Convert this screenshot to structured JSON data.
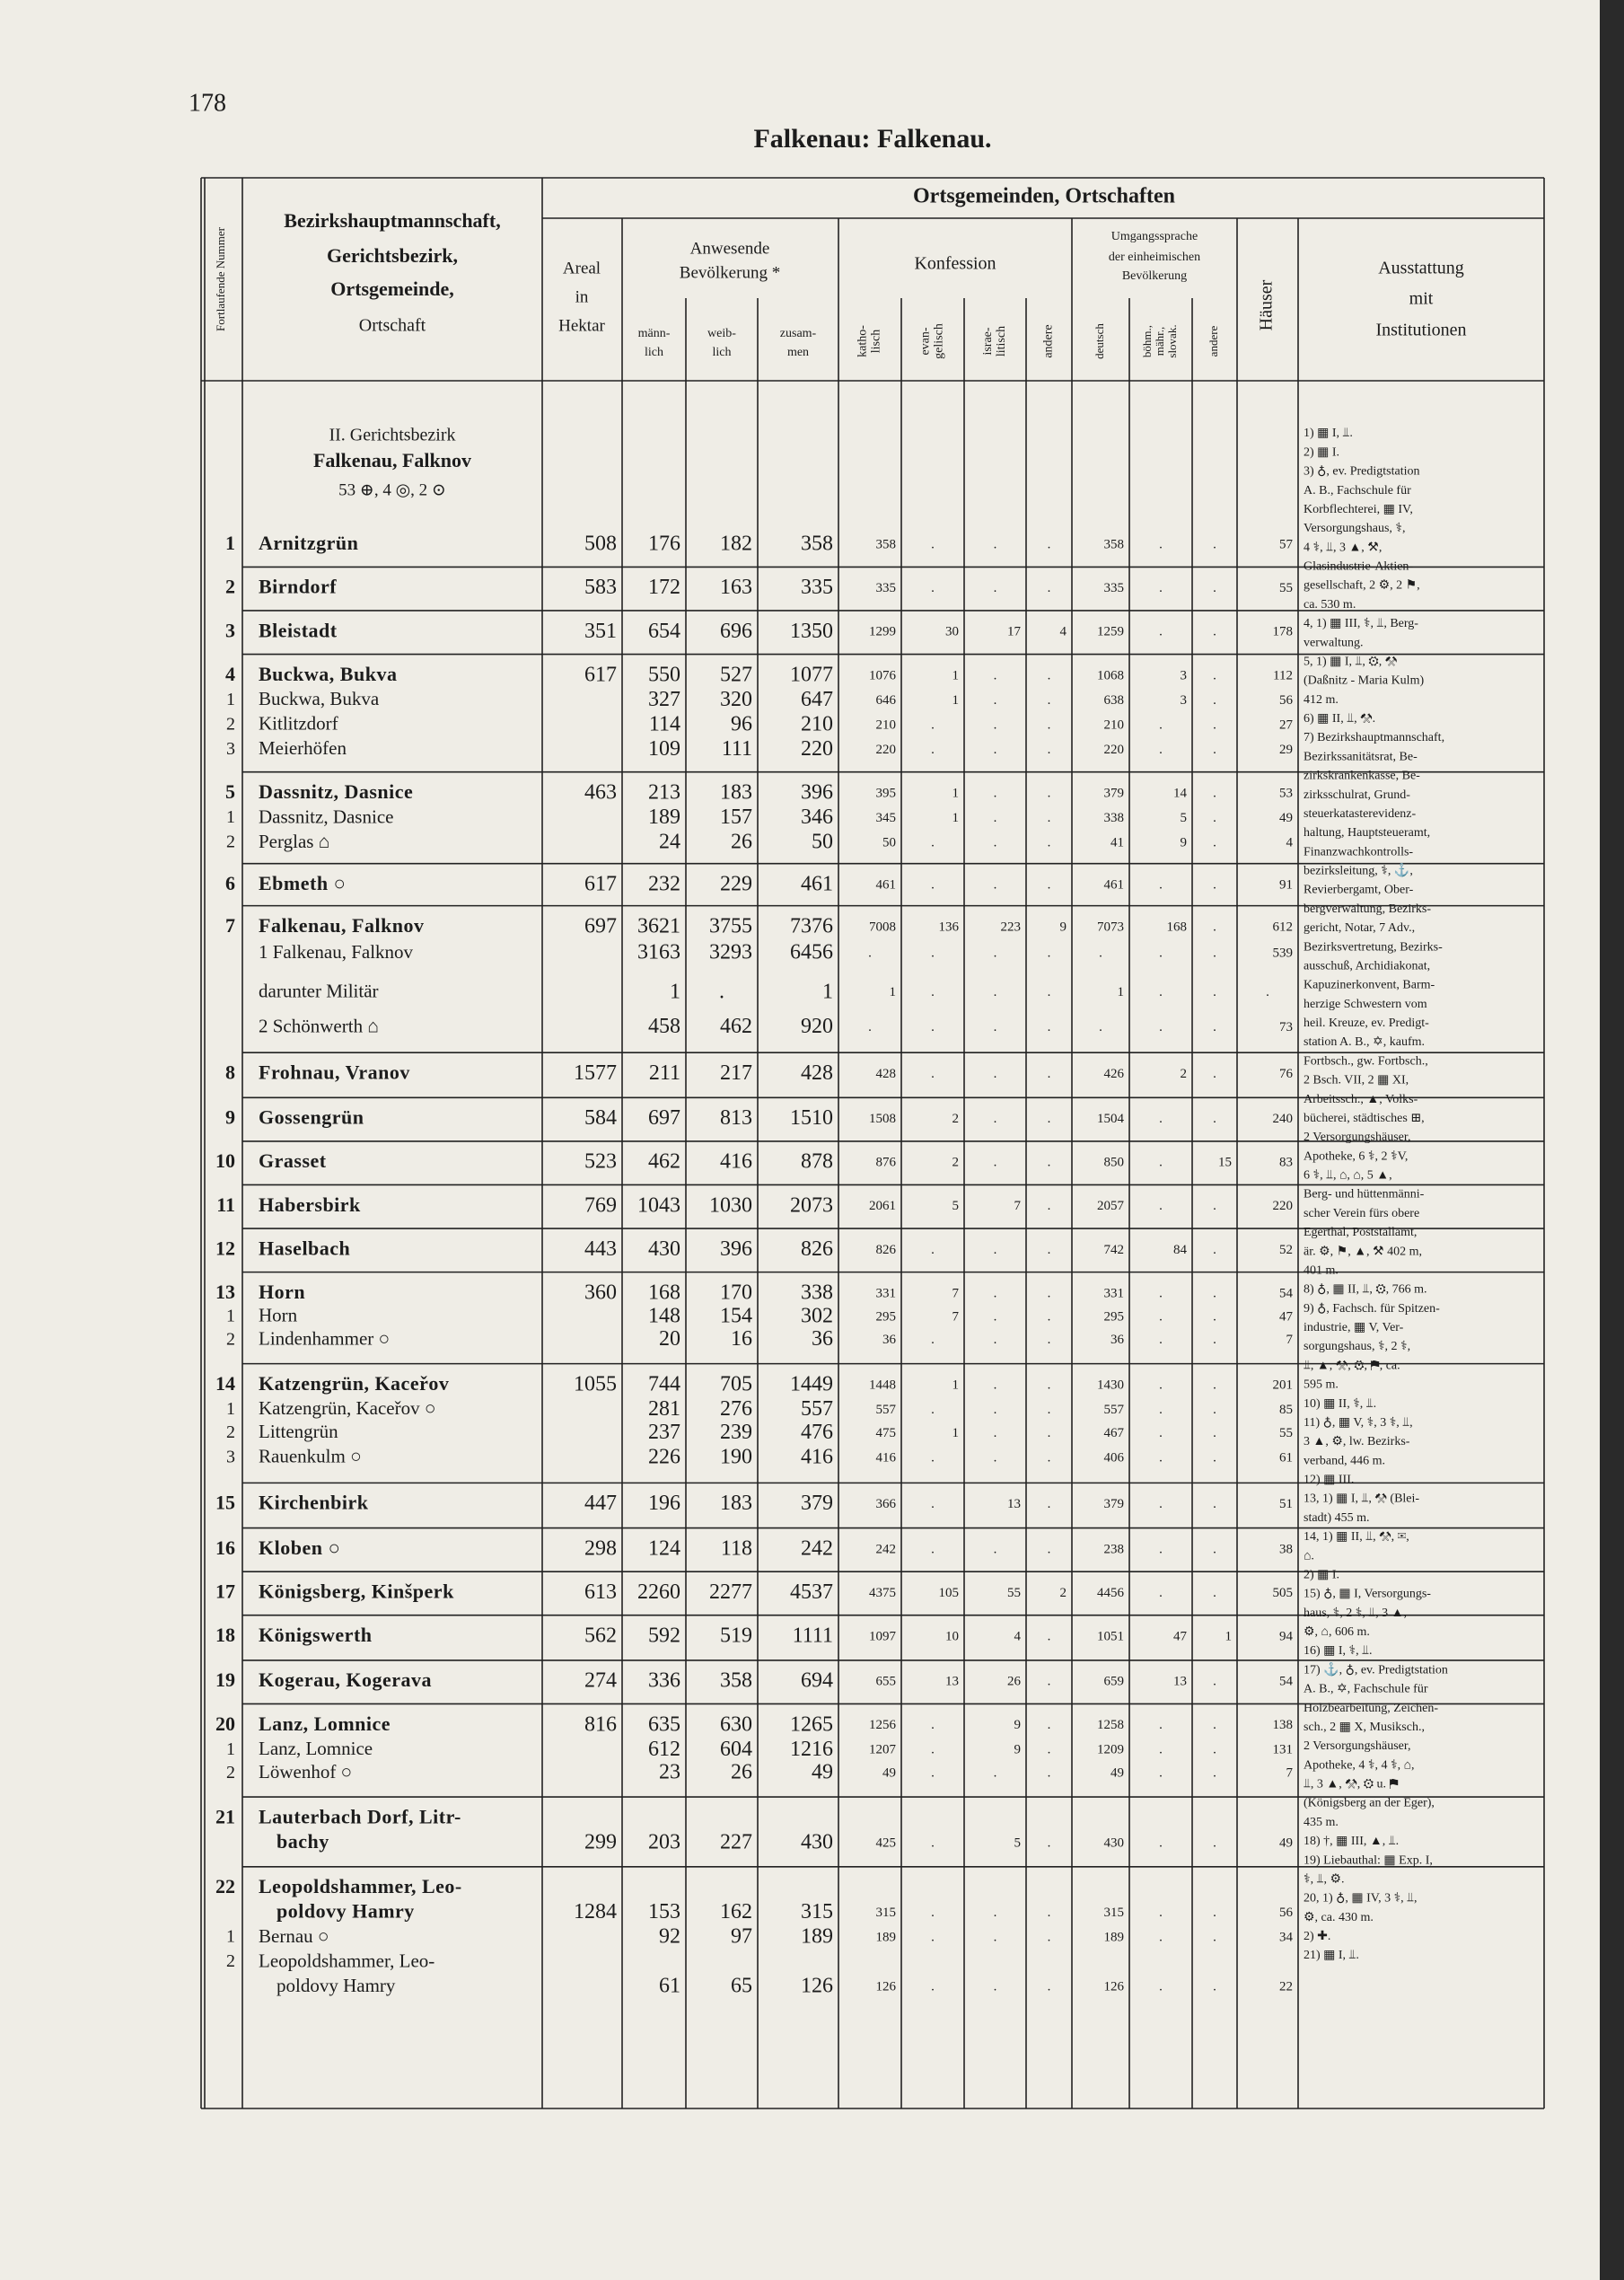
{
  "page_number": "178",
  "title": "Falkenau: Falkenau.",
  "header": {
    "number": "Fortlaufende Nummer",
    "place": [
      "Bezirkshauptmannschaft,",
      "Gerichtsbezirk,",
      "Ortsgemeinde,",
      "Ortschaft"
    ],
    "band": "Ortsgemeinden, Ortschaften",
    "area": [
      "Areal",
      "in",
      "Hektar"
    ],
    "population": [
      "Anwesende",
      "Bevölkerung *"
    ],
    "pop_cols": [
      [
        "männ-",
        "lich"
      ],
      [
        "weib-",
        "lich"
      ],
      [
        "zusam-",
        "men"
      ]
    ],
    "confession": "Konfession",
    "conf_cols": [
      [
        "katho-",
        "lisch"
      ],
      [
        "evan-",
        "gelisch"
      ],
      [
        "israe-",
        "litisch"
      ],
      [
        "andere"
      ]
    ],
    "language": [
      "Umgangssprache",
      "der einheimischen",
      "Bevölkerung"
    ],
    "lang_cols": [
      [
        "deutsch"
      ],
      [
        "böhm.,",
        "mähr.,",
        "slovak."
      ],
      [
        "andere"
      ]
    ],
    "houses": "Häuser",
    "equipment": [
      "Ausstattung",
      "mit",
      "Institutionen"
    ]
  },
  "section": [
    "II. Gerichtsbezirk",
    "Falkenau, Falknov",
    "53 ⊕, 4 ◎, 2 ⊙"
  ],
  "groups": [
    {
      "nr": "1",
      "name": [
        "Arnitzgrün"
      ],
      "cells": [
        508,
        176,
        182,
        358,
        358,
        ".",
        ".",
        ".",
        358,
        ".",
        ".",
        57
      ]
    },
    {
      "nr": "2",
      "name": [
        "Birndorf"
      ],
      "cells": [
        583,
        172,
        163,
        335,
        335,
        ".",
        ".",
        ".",
        335,
        ".",
        ".",
        55
      ]
    },
    {
      "nr": "3",
      "name": [
        "Bleistadt"
      ],
      "cells": [
        351,
        654,
        696,
        1350,
        1299,
        30,
        17,
        4,
        1259,
        ".",
        ".",
        178
      ]
    },
    {
      "nr": "4",
      "name": [
        "Buckwa, Bukva"
      ],
      "cells": [
        617,
        550,
        527,
        1077,
        1076,
        1,
        ".",
        ".",
        1068,
        3,
        ".",
        112
      ],
      "subs": [
        {
          "nr": "1",
          "name": [
            "Buckwa, Bukva"
          ],
          "cells": [
            null,
            327,
            320,
            647,
            646,
            1,
            ".",
            ".",
            638,
            3,
            ".",
            56
          ]
        },
        {
          "nr": "2",
          "name": [
            "Kitlitzdorf"
          ],
          "cells": [
            null,
            114,
            96,
            210,
            210,
            ".",
            ".",
            ".",
            210,
            ".",
            ".",
            27
          ]
        },
        {
          "nr": "3",
          "name": [
            "Meierhöfen"
          ],
          "cells": [
            null,
            109,
            111,
            220,
            220,
            ".",
            ".",
            ".",
            220,
            ".",
            ".",
            29
          ]
        }
      ]
    },
    {
      "nr": "5",
      "name": [
        "Dassnitz, Dasnice"
      ],
      "cells": [
        463,
        213,
        183,
        396,
        395,
        1,
        ".",
        ".",
        379,
        14,
        ".",
        53
      ],
      "subs": [
        {
          "nr": "1",
          "name": [
            "Dassnitz, Dasnice"
          ],
          "cells": [
            null,
            189,
            157,
            346,
            345,
            1,
            ".",
            ".",
            338,
            5,
            ".",
            49
          ]
        },
        {
          "nr": "2",
          "name": [
            "Perglas ⌂"
          ],
          "cells": [
            null,
            24,
            26,
            50,
            50,
            ".",
            ".",
            ".",
            41,
            9,
            ".",
            4
          ]
        }
      ]
    },
    {
      "nr": "6",
      "name": [
        "Ebmeth ○"
      ],
      "cells": [
        617,
        232,
        229,
        461,
        461,
        ".",
        ".",
        ".",
        461,
        ".",
        ".",
        91
      ]
    },
    {
      "nr": "7",
      "name": [
        "Falkenau, Falknov"
      ],
      "cells": [
        697,
        3621,
        3755,
        7376,
        7008,
        136,
        223,
        9,
        7073,
        168,
        ".",
        612
      ],
      "subs": [
        {
          "nr": null,
          "name": [
            "1 Falkenau, Falknov"
          ],
          "cells": [
            null,
            3163,
            3293,
            6456,
            ".",
            ".",
            ".",
            ".",
            ".",
            ".",
            ".",
            539
          ]
        },
        {
          "nr": null,
          "name": [
            "darunter Militär"
          ],
          "cells": [
            null,
            1,
            ".",
            1,
            1,
            ".",
            ".",
            ".",
            1,
            ".",
            ".",
            "."
          ]
        },
        {
          "nr": null,
          "name": [
            "2 Schönwerth ⌂"
          ],
          "cells": [
            null,
            458,
            462,
            920,
            ".",
            ".",
            ".",
            ".",
            ".",
            ".",
            ".",
            73
          ]
        }
      ]
    },
    {
      "nr": "8",
      "name": [
        "Frohnau, Vranov"
      ],
      "cells": [
        1577,
        211,
        217,
        428,
        428,
        ".",
        ".",
        ".",
        426,
        2,
        ".",
        76
      ]
    },
    {
      "nr": "9",
      "name": [
        "Gossengrün"
      ],
      "cells": [
        584,
        697,
        813,
        1510,
        1508,
        2,
        ".",
        ".",
        1504,
        ".",
        ".",
        240
      ]
    },
    {
      "nr": "10",
      "name": [
        "Grasset"
      ],
      "cells": [
        523,
        462,
        416,
        878,
        876,
        2,
        ".",
        ".",
        850,
        ".",
        15,
        83
      ]
    },
    {
      "nr": "11",
      "name": [
        "Habersbirk"
      ],
      "cells": [
        769,
        1043,
        1030,
        2073,
        2061,
        5,
        7,
        ".",
        2057,
        ".",
        ".",
        220
      ]
    },
    {
      "nr": "12",
      "name": [
        "Haselbach"
      ],
      "cells": [
        443,
        430,
        396,
        826,
        826,
        ".",
        ".",
        ".",
        742,
        84,
        ".",
        52
      ]
    },
    {
      "nr": "13",
      "name": [
        "Horn"
      ],
      "cells": [
        360,
        168,
        170,
        338,
        331,
        7,
        ".",
        ".",
        331,
        ".",
        ".",
        54
      ],
      "subs": [
        {
          "nr": "1",
          "name": [
            "Horn"
          ],
          "cells": [
            null,
            148,
            154,
            302,
            295,
            7,
            ".",
            ".",
            295,
            ".",
            ".",
            47
          ]
        },
        {
          "nr": "2",
          "name": [
            "Lindenhammer ○"
          ],
          "cells": [
            null,
            20,
            16,
            36,
            36,
            ".",
            ".",
            ".",
            36,
            ".",
            ".",
            7
          ]
        }
      ]
    },
    {
      "nr": "14",
      "name": [
        "Katzengrün, Kaceřov"
      ],
      "cells": [
        1055,
        744,
        705,
        1449,
        1448,
        1,
        ".",
        ".",
        1430,
        ".",
        ".",
        201
      ],
      "subs": [
        {
          "nr": "1",
          "name": [
            "Katzengrün, Kaceřov ○"
          ],
          "cells": [
            null,
            281,
            276,
            557,
            557,
            ".",
            ".",
            ".",
            557,
            ".",
            ".",
            85
          ]
        },
        {
          "nr": "2",
          "name": [
            "Littengrün"
          ],
          "cells": [
            null,
            237,
            239,
            476,
            475,
            1,
            ".",
            ".",
            467,
            ".",
            ".",
            55
          ]
        },
        {
          "nr": "3",
          "name": [
            "Rauenkulm ○"
          ],
          "cells": [
            null,
            226,
            190,
            416,
            416,
            ".",
            ".",
            ".",
            406,
            ".",
            ".",
            61
          ]
        }
      ]
    },
    {
      "nr": "15",
      "name": [
        "Kirchenbirk"
      ],
      "cells": [
        447,
        196,
        183,
        379,
        366,
        ".",
        13,
        ".",
        379,
        ".",
        ".",
        51
      ]
    },
    {
      "nr": "16",
      "name": [
        "Kloben ○"
      ],
      "cells": [
        298,
        124,
        118,
        242,
        242,
        ".",
        ".",
        ".",
        238,
        ".",
        ".",
        38
      ]
    },
    {
      "nr": "17",
      "name": [
        "Königsberg, Kinšperk"
      ],
      "cells": [
        613,
        2260,
        2277,
        4537,
        4375,
        105,
        55,
        2,
        4456,
        ".",
        ".",
        505
      ]
    },
    {
      "nr": "18",
      "name": [
        "Königswerth"
      ],
      "cells": [
        562,
        592,
        519,
        1111,
        1097,
        10,
        4,
        ".",
        1051,
        47,
        1,
        94
      ]
    },
    {
      "nr": "19",
      "name": [
        "Kogerau, Kogerava"
      ],
      "cells": [
        274,
        336,
        358,
        694,
        655,
        13,
        26,
        ".",
        659,
        13,
        ".",
        54
      ]
    },
    {
      "nr": "20",
      "name": [
        "Lanz, Lomnice"
      ],
      "cells": [
        816,
        635,
        630,
        1265,
        1256,
        ".",
        9,
        ".",
        1258,
        ".",
        ".",
        138
      ],
      "subs": [
        {
          "nr": "1",
          "name": [
            "Lanz, Lomnice"
          ],
          "cells": [
            null,
            612,
            604,
            1216,
            1207,
            ".",
            9,
            ".",
            1209,
            ".",
            ".",
            131
          ]
        },
        {
          "nr": "2",
          "name": [
            "Löwenhof ○"
          ],
          "cells": [
            null,
            23,
            26,
            49,
            49,
            ".",
            ".",
            ".",
            49,
            ".",
            ".",
            7
          ]
        }
      ]
    },
    {
      "nr": "21",
      "name": [
        "Lauterbach Dorf, Litr-",
        "bachy"
      ],
      "cells": [
        299,
        203,
        227,
        430,
        425,
        ".",
        5,
        ".",
        430,
        ".",
        ".",
        49
      ]
    },
    {
      "nr": "22",
      "name": [
        "Leopoldshammer, Leo-",
        "poldovy Hamry"
      ],
      "cells": [
        1284,
        153,
        162,
        315,
        315,
        ".",
        ".",
        ".",
        315,
        ".",
        ".",
        56
      ],
      "subs": [
        {
          "nr": "1",
          "name": [
            "Bernau ○"
          ],
          "cells": [
            null,
            92,
            97,
            189,
            189,
            ".",
            ".",
            ".",
            189,
            ".",
            ".",
            34
          ]
        },
        {
          "nr": "2",
          "name": [
            "Leopoldshammer, Leo-",
            "poldovy Hamry"
          ],
          "cells": [
            null,
            61,
            65,
            126,
            126,
            ".",
            ".",
            ".",
            126,
            ".",
            ".",
            22
          ]
        }
      ]
    }
  ],
  "notes": [
    "1) ▦ I, ⫫.",
    "2) ▦ I.",
    "3) ♁, ev. Predigtstation",
    "A. B., Fachschule für",
    "Korbflechterei, ▦ IV,",
    "Versorgungshaus, ⚕,",
    "4 ⚕, ⫫, 3 ▲, ⚒,",
    "Glasindustrie-Aktien-",
    "gesellschaft, 2 ⚙, 2 ⚑,",
    "ca. 530 m.",
    "4, 1) ▦ III, ⚕, ⫫, Berg-",
    "verwaltung.",
    "5, 1) ▦ I, ⫫, ⚙, ⚒",
    "(Daßnitz - Maria Kulm)",
    "412 m.",
    "6) ▦ II, ⫫, ⚒.",
    "7) Bezirkshauptmannschaft,",
    "Bezirkssanitätsrat, Be-",
    "zirkskrankenkasse, Be-",
    "zirksschulrat, Grund-",
    "steuerkatasterevidenz-",
    "haltung, Hauptsteueramt,",
    "Finanzwachkontrolls-",
    "bezirksleitung, ⚕, ⚓,",
    "Revierbergamt, Ober-",
    "bergverwaltung, Bezirks-",
    "gericht, Notar, 7 Adv.,",
    "Bezirksvertretung, Bezirks-",
    "ausschuß, Archidiakonat,",
    "Kapuzinerkonvent, Barm-",
    "herzige Schwestern vom",
    "heil. Kreuze, ev. Predigt-",
    "station A. B., ✡, kaufm.",
    "Fortbsch., gw. Fortbsch.,",
    "2 Bsch. VII, 2 ▦ XI,",
    "Arbeitssch., ▲, Volks-",
    "bücherei, städtisches ⊞,",
    "2 Versorgungshäuser,",
    "Apotheke, 6 ⚕, 2 ⚕V,",
    "6 ⚕, ⫫, ⌂, ⌂, 5 ▲,",
    "Berg- und hüttenmänni-",
    "scher Verein fürs obere",
    "Egerthal, Poststallamt,",
    "är. ⚙, ⚑, ▲, ⚒ 402 m,",
    "401 m.",
    "8) ♁, ▦ II, ⫫, ⚙, 766 m.",
    "9) ♁, Fachsch. für Spitzen-",
    "industrie, ▦ V, Ver-",
    "sorgungshaus, ⚕, 2 ⚕,",
    "⫫, ▲, ⚒, ⚙, ⚑, ca.",
    "595 m.",
    "10) ▦ II, ⚕, ⫫.",
    "11) ♁, ▦ V, ⚕, 3 ⚕, ⫫,",
    "3 ▲, ⚙, lw. Bezirks-",
    "verband, 446 m.",
    "12) ▦ III.",
    "13, 1) ▦ I, ⫫, ⚒ (Blei-",
    "stadt) 455 m.",
    "14, 1) ▦ II, ⫫, ⚒, ✉,",
    "⌂.",
    "2) ▦ I.",
    "15) ♁, ▦ I, Versorgungs-",
    "haus, ⚕, 2 ⚕, ⫫, 3 ▲,",
    "⚙, ⌂, 606 m.",
    "16) ▦ I, ⚕, ⫫.",
    "17) ⚓, ♁, ev. Predigtstation",
    "A. B., ✡, Fachschule für",
    "Holzbearbeitung, Zeichen-",
    "sch., 2 ▦ X, Musiksch.,",
    "2 Versorgungshäuser,",
    "Apotheke, 4 ⚕, 4 ⚕, ⌂,",
    "⫫, 3 ▲, ⚒, ⚙ u. ⚑",
    "(Königsberg an der Eger),",
    "435 m.",
    "18) †, ▦ III, ▲, ⫫.",
    "19) Liebauthal: ▦ Exp. I,",
    "⚕, ⫫, ⚙.",
    "20, 1) ♁, ▦ IV, 3 ⚕, ⫫,",
    "⚙, ca. 430 m.",
    "2) ✚.",
    "21) ▦ I, ⫫."
  ]
}
